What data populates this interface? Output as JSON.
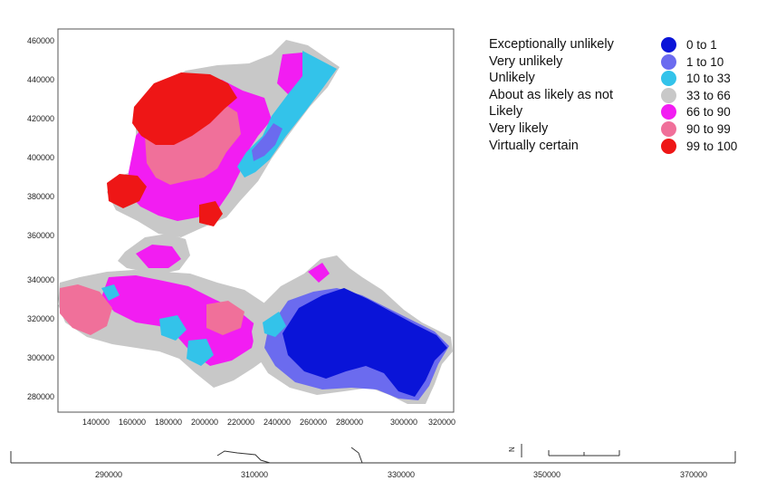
{
  "map": {
    "y_ticks": [
      "460000",
      "440000",
      "420000",
      "400000",
      "380000",
      "360000",
      "340000",
      "320000",
      "300000",
      "280000"
    ],
    "x_ticks": [
      "140000",
      "160000",
      "180000",
      "200000",
      "220000",
      "240000",
      "260000",
      "280000",
      "300000",
      "320000"
    ],
    "bottom_ticks": [
      "290000",
      "310000",
      "330000",
      "350000",
      "370000"
    ],
    "north_label": "N"
  },
  "legend": {
    "items": [
      {
        "description": "Exceptionally unlikely",
        "range": "0 to 1",
        "color": "#0a14d8"
      },
      {
        "description": "Very unlikely",
        "range": "1 to 10",
        "color": "#6b6bef"
      },
      {
        "description": "Unlikely",
        "range": "10 to 33",
        "color": "#33c3ea"
      },
      {
        "description": "About as likely as not",
        "range": "33 to 66",
        "color": "#c8c8c8"
      },
      {
        "description": "Likely",
        "range": "66 to 90",
        "color": "#f21df2"
      },
      {
        "description": "Very likely",
        "range": "90 to 99",
        "color": "#f0709a"
      },
      {
        "description": "Virtually certain",
        "range": "99 to 100",
        "color": "#ee1616"
      }
    ]
  }
}
